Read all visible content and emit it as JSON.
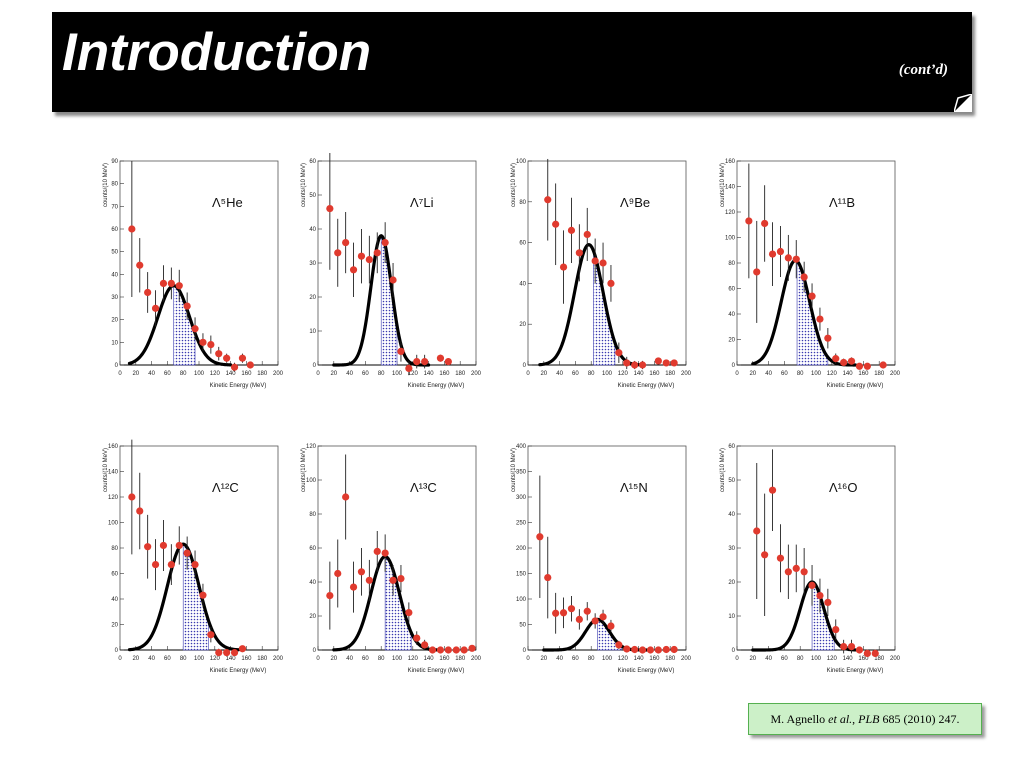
{
  "header": {
    "title": "Introduction",
    "subtitle": "(cont’d)"
  },
  "citation": {
    "authors": "M. Agnello",
    "etal": "et al.",
    "journal": "PLB",
    "ref": "685 (2010) 247."
  },
  "colors": {
    "header_bg": "#000000",
    "marker": "#e03a2e",
    "fit_line": "#000000",
    "hatch": "#3a3ab0",
    "citation_bg": "#ccf0c8"
  },
  "chart_data": [
    {
      "type": "scatter",
      "label": "Λ⁵He",
      "xlabel": "Kinetic Energy (MeV)",
      "ylabel": "counts/(10 MeV)",
      "xlim": [
        0,
        200
      ],
      "ylim": [
        0,
        90
      ],
      "xticks": [
        0,
        20,
        40,
        60,
        80,
        100,
        120,
        140,
        160,
        180,
        200
      ],
      "yticks": [
        0,
        10,
        20,
        30,
        40,
        50,
        60,
        70,
        80,
        90
      ],
      "points": [
        {
          "x": 15,
          "y": 60,
          "e": 30
        },
        {
          "x": 25,
          "y": 44,
          "e": 12
        },
        {
          "x": 35,
          "y": 32,
          "e": 9
        },
        {
          "x": 45,
          "y": 25,
          "e": 8
        },
        {
          "x": 55,
          "y": 36,
          "e": 8
        },
        {
          "x": 65,
          "y": 36,
          "e": 7
        },
        {
          "x": 75,
          "y": 35,
          "e": 7
        },
        {
          "x": 85,
          "y": 26,
          "e": 6
        },
        {
          "x": 95,
          "y": 16,
          "e": 5
        },
        {
          "x": 105,
          "y": 10,
          "e": 4
        },
        {
          "x": 115,
          "y": 9,
          "e": 4
        },
        {
          "x": 125,
          "y": 5,
          "e": 3
        },
        {
          "x": 135,
          "y": 3,
          "e": 2
        },
        {
          "x": 145,
          "y": -1,
          "e": 2
        },
        {
          "x": 155,
          "y": 3,
          "e": 2
        },
        {
          "x": 165,
          "y": 0,
          "e": 1
        }
      ],
      "fit": {
        "mean": 68,
        "sigma": 20,
        "amp": 35,
        "start": 12,
        "end": 140
      },
      "cut": [
        68,
        95
      ]
    },
    {
      "type": "scatter",
      "label": "Λ⁷Li",
      "xlabel": "Kinetic Energy (MeV)",
      "ylabel": "counts/(10 MeV)",
      "xlim": [
        0,
        200
      ],
      "ylim": [
        0,
        60
      ],
      "xticks": [
        0,
        20,
        40,
        60,
        80,
        100,
        120,
        140,
        160,
        180,
        200
      ],
      "yticks": [
        0,
        10,
        20,
        30,
        40,
        50,
        60
      ],
      "points": [
        {
          "x": 15,
          "y": 46,
          "e": 18
        },
        {
          "x": 25,
          "y": 33,
          "e": 10
        },
        {
          "x": 35,
          "y": 36,
          "e": 9
        },
        {
          "x": 45,
          "y": 28,
          "e": 8
        },
        {
          "x": 55,
          "y": 32,
          "e": 8
        },
        {
          "x": 65,
          "y": 31,
          "e": 7
        },
        {
          "x": 75,
          "y": 33,
          "e": 6
        },
        {
          "x": 85,
          "y": 36,
          "e": 6
        },
        {
          "x": 95,
          "y": 25,
          "e": 5
        },
        {
          "x": 105,
          "y": 4,
          "e": 3
        },
        {
          "x": 115,
          "y": -1,
          "e": 2
        },
        {
          "x": 125,
          "y": 1,
          "e": 2
        },
        {
          "x": 135,
          "y": 1,
          "e": 2
        },
        {
          "x": 155,
          "y": 2,
          "e": 1
        },
        {
          "x": 165,
          "y": 1,
          "e": 1
        }
      ],
      "fit": {
        "mean": 80,
        "sigma": 13,
        "amp": 38,
        "start": 20,
        "end": 140
      },
      "cut": [
        80,
        100
      ]
    },
    {
      "type": "scatter",
      "label": "Λ⁹Be",
      "xlabel": "Kinetic Energy (MeV)",
      "ylabel": "counts/(10 MeV)",
      "xlim": [
        0,
        200
      ],
      "ylim": [
        0,
        100
      ],
      "xticks": [
        0,
        20,
        40,
        60,
        80,
        100,
        120,
        140,
        160,
        180,
        200
      ],
      "yticks": [
        0,
        20,
        40,
        60,
        80,
        100
      ],
      "points": [
        {
          "x": 25,
          "y": 81,
          "e": 20
        },
        {
          "x": 35,
          "y": 69,
          "e": 20
        },
        {
          "x": 45,
          "y": 48,
          "e": 18
        },
        {
          "x": 55,
          "y": 66,
          "e": 16
        },
        {
          "x": 65,
          "y": 55,
          "e": 14
        },
        {
          "x": 75,
          "y": 64,
          "e": 13
        },
        {
          "x": 85,
          "y": 51,
          "e": 11
        },
        {
          "x": 95,
          "y": 50,
          "e": 10
        },
        {
          "x": 105,
          "y": 40,
          "e": 9
        },
        {
          "x": 115,
          "y": 6,
          "e": 5
        },
        {
          "x": 125,
          "y": 1,
          "e": 3
        },
        {
          "x": 135,
          "y": 0,
          "e": 2
        },
        {
          "x": 145,
          "y": 0,
          "e": 2
        },
        {
          "x": 165,
          "y": 2,
          "e": 1
        },
        {
          "x": 175,
          "y": 1,
          "e": 1
        },
        {
          "x": 185,
          "y": 1,
          "e": 1
        }
      ],
      "fit": {
        "mean": 77,
        "sigma": 18,
        "amp": 59,
        "start": 15,
        "end": 140
      },
      "cut": [
        83,
        110
      ]
    },
    {
      "type": "scatter",
      "label": "Λ¹¹B",
      "xlabel": "Kinetic Energy (MeV)",
      "ylabel": "counts/(10 MeV)",
      "xlim": [
        0,
        200
      ],
      "ylim": [
        0,
        160
      ],
      "xticks": [
        0,
        20,
        40,
        60,
        80,
        100,
        120,
        140,
        160,
        180,
        200
      ],
      "yticks": [
        0,
        20,
        40,
        60,
        80,
        100,
        120,
        140,
        160
      ],
      "points": [
        {
          "x": 15,
          "y": 113,
          "e": 45
        },
        {
          "x": 25,
          "y": 73,
          "e": 40
        },
        {
          "x": 35,
          "y": 111,
          "e": 30
        },
        {
          "x": 45,
          "y": 87,
          "e": 25
        },
        {
          "x": 55,
          "y": 89,
          "e": 20
        },
        {
          "x": 65,
          "y": 84,
          "e": 18
        },
        {
          "x": 75,
          "y": 83,
          "e": 15
        },
        {
          "x": 85,
          "y": 69,
          "e": 12
        },
        {
          "x": 95,
          "y": 54,
          "e": 10
        },
        {
          "x": 105,
          "y": 36,
          "e": 9
        },
        {
          "x": 115,
          "y": 21,
          "e": 8
        },
        {
          "x": 125,
          "y": 5,
          "e": 4
        },
        {
          "x": 135,
          "y": 2,
          "e": 3
        },
        {
          "x": 145,
          "y": 3,
          "e": 3
        },
        {
          "x": 155,
          "y": -1,
          "e": 2
        },
        {
          "x": 165,
          "y": -1,
          "e": 2
        },
        {
          "x": 185,
          "y": 0,
          "e": 1
        }
      ],
      "fit": {
        "mean": 74,
        "sigma": 18,
        "amp": 82,
        "start": 20,
        "end": 150
      },
      "cut": [
        76,
        115
      ]
    },
    {
      "type": "scatter",
      "label": "Λ¹²C",
      "xlabel": "Kinetic Energy (MeV)",
      "ylabel": "counts/(10 MeV)",
      "xlim": [
        0,
        200
      ],
      "ylim": [
        0,
        160
      ],
      "xticks": [
        0,
        20,
        40,
        60,
        80,
        100,
        120,
        140,
        160,
        180,
        200
      ],
      "yticks": [
        0,
        20,
        40,
        60,
        80,
        100,
        120,
        140,
        160
      ],
      "points": [
        {
          "x": 15,
          "y": 120,
          "e": 45
        },
        {
          "x": 25,
          "y": 109,
          "e": 30
        },
        {
          "x": 35,
          "y": 81,
          "e": 25
        },
        {
          "x": 45,
          "y": 67,
          "e": 20
        },
        {
          "x": 55,
          "y": 82,
          "e": 20
        },
        {
          "x": 65,
          "y": 67,
          "e": 16
        },
        {
          "x": 75,
          "y": 82,
          "e": 15
        },
        {
          "x": 85,
          "y": 76,
          "e": 13
        },
        {
          "x": 95,
          "y": 67,
          "e": 11
        },
        {
          "x": 105,
          "y": 43,
          "e": 9
        },
        {
          "x": 115,
          "y": 12,
          "e": 6
        },
        {
          "x": 125,
          "y": -2,
          "e": 3
        },
        {
          "x": 135,
          "y": -2,
          "e": 3
        },
        {
          "x": 145,
          "y": -2,
          "e": 2
        },
        {
          "x": 155,
          "y": 1,
          "e": 2
        }
      ],
      "fit": {
        "mean": 80,
        "sigma": 20,
        "amp": 83,
        "start": 12,
        "end": 150
      },
      "cut": [
        80,
        112
      ]
    },
    {
      "type": "scatter",
      "label": "Λ¹³C",
      "xlabel": "Kinetic Energy (MeV)",
      "ylabel": "counts/(10 MeV)",
      "xlim": [
        0,
        200
      ],
      "ylim": [
        0,
        120
      ],
      "xticks": [
        0,
        20,
        40,
        60,
        80,
        100,
        120,
        140,
        160,
        180,
        200
      ],
      "yticks": [
        0,
        20,
        40,
        60,
        80,
        100,
        120
      ],
      "points": [
        {
          "x": 15,
          "y": 32,
          "e": 20
        },
        {
          "x": 25,
          "y": 45,
          "e": 20
        },
        {
          "x": 35,
          "y": 90,
          "e": 25
        },
        {
          "x": 45,
          "y": 37,
          "e": 15
        },
        {
          "x": 55,
          "y": 46,
          "e": 14
        },
        {
          "x": 65,
          "y": 41,
          "e": 12
        },
        {
          "x": 75,
          "y": 58,
          "e": 12
        },
        {
          "x": 85,
          "y": 57,
          "e": 11
        },
        {
          "x": 95,
          "y": 41,
          "e": 9
        },
        {
          "x": 105,
          "y": 42,
          "e": 8
        },
        {
          "x": 115,
          "y": 22,
          "e": 6
        },
        {
          "x": 125,
          "y": 7,
          "e": 4
        },
        {
          "x": 135,
          "y": 3,
          "e": 3
        },
        {
          "x": 145,
          "y": 0,
          "e": 2
        },
        {
          "x": 155,
          "y": 0,
          "e": 1
        },
        {
          "x": 165,
          "y": 0,
          "e": 1
        },
        {
          "x": 175,
          "y": 0,
          "e": 1
        },
        {
          "x": 185,
          "y": 0,
          "e": 1
        },
        {
          "x": 195,
          "y": 1,
          "e": 1
        }
      ],
      "fit": {
        "mean": 85,
        "sigma": 18,
        "amp": 55,
        "start": 20,
        "end": 150
      },
      "cut": [
        85,
        118
      ]
    },
    {
      "type": "scatter",
      "label": "Λ¹⁵N",
      "xlabel": "Kinetic Energy (MeV)",
      "ylabel": "counts/(10 MeV)",
      "xlim": [
        0,
        200
      ],
      "ylim": [
        0,
        400
      ],
      "xticks": [
        0,
        20,
        40,
        60,
        80,
        100,
        120,
        140,
        160,
        180,
        200
      ],
      "yticks": [
        0,
        50,
        100,
        150,
        200,
        250,
        300,
        350,
        400
      ],
      "points": [
        {
          "x": 15,
          "y": 222,
          "e": 120
        },
        {
          "x": 25,
          "y": 142,
          "e": 80
        },
        {
          "x": 35,
          "y": 72,
          "e": 40
        },
        {
          "x": 45,
          "y": 73,
          "e": 30
        },
        {
          "x": 55,
          "y": 81,
          "e": 25
        },
        {
          "x": 65,
          "y": 60,
          "e": 20
        },
        {
          "x": 75,
          "y": 76,
          "e": 18
        },
        {
          "x": 85,
          "y": 57,
          "e": 15
        },
        {
          "x": 95,
          "y": 65,
          "e": 14
        },
        {
          "x": 105,
          "y": 47,
          "e": 12
        },
        {
          "x": 115,
          "y": 10,
          "e": 8
        },
        {
          "x": 125,
          "y": 2,
          "e": 5
        },
        {
          "x": 135,
          "y": 1,
          "e": 4
        },
        {
          "x": 145,
          "y": 0,
          "e": 3
        },
        {
          "x": 155,
          "y": 0,
          "e": 3
        },
        {
          "x": 165,
          "y": 0,
          "e": 2
        },
        {
          "x": 175,
          "y": 1,
          "e": 2
        },
        {
          "x": 185,
          "y": 1,
          "e": 2
        }
      ],
      "fit": {
        "mean": 88,
        "sigma": 15,
        "amp": 60,
        "start": 20,
        "end": 150
      },
      "cut": [
        88,
        118
      ]
    },
    {
      "type": "scatter",
      "label": "Λ¹⁶O",
      "xlabel": "Kinetic Energy (MeV)",
      "ylabel": "counts/(10 MeV)",
      "xlim": [
        0,
        200
      ],
      "ylim": [
        0,
        60
      ],
      "xticks": [
        0,
        20,
        40,
        60,
        80,
        100,
        120,
        140,
        160,
        180,
        200
      ],
      "yticks": [
        0,
        10,
        20,
        30,
        40,
        50,
        60
      ],
      "points": [
        {
          "x": 25,
          "y": 35,
          "e": 20
        },
        {
          "x": 35,
          "y": 28,
          "e": 18
        },
        {
          "x": 45,
          "y": 47,
          "e": 12
        },
        {
          "x": 55,
          "y": 27,
          "e": 10
        },
        {
          "x": 65,
          "y": 23,
          "e": 8
        },
        {
          "x": 75,
          "y": 24,
          "e": 7
        },
        {
          "x": 85,
          "y": 23,
          "e": 7
        },
        {
          "x": 95,
          "y": 19,
          "e": 6
        },
        {
          "x": 105,
          "y": 16,
          "e": 5
        },
        {
          "x": 115,
          "y": 14,
          "e": 4
        },
        {
          "x": 125,
          "y": 6,
          "e": 3
        },
        {
          "x": 135,
          "y": 1,
          "e": 2
        },
        {
          "x": 145,
          "y": 1,
          "e": 2
        },
        {
          "x": 155,
          "y": 0,
          "e": 1
        },
        {
          "x": 165,
          "y": -1,
          "e": 1
        },
        {
          "x": 175,
          "y": -1,
          "e": 1
        }
      ],
      "fit": {
        "mean": 95,
        "sigma": 15,
        "amp": 20,
        "start": 20,
        "end": 150
      },
      "cut": [
        95,
        123
      ]
    }
  ]
}
